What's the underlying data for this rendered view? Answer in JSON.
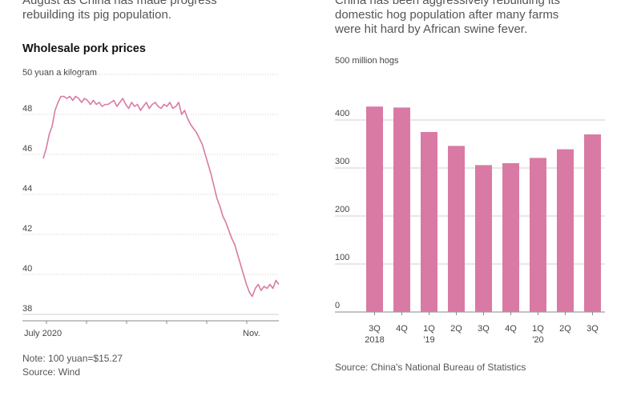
{
  "left_intro": "August as China has made progress\nrebuilding its pig population.",
  "right_intro": "China has been aggressively rebuilding its\ndomestic hog population after many farms\nwere hit hard by African swine fever.",
  "colors": {
    "line": "#d97aa4",
    "bar": "#d97aa4",
    "grid": "#cfcfcf"
  },
  "chart_data": [
    {
      "type": "line",
      "title": "Wholesale pork prices",
      "unit_label": "50 yuan a kilogram",
      "ylim": [
        38,
        50
      ],
      "y_ticks": [
        "48",
        "46",
        "44",
        "42",
        "40",
        "38"
      ],
      "x_ticks": [
        "July 2020",
        "Nov."
      ],
      "grid": true,
      "note": "Note: 100 yuan=$15.27",
      "source": "Source: Wind",
      "series": [
        {
          "values": [
            45.8,
            46.3,
            47.0,
            47.4,
            48.2,
            48.6,
            48.9,
            48.9,
            48.8,
            48.9,
            48.7,
            48.9,
            48.8,
            48.6,
            48.8,
            48.7,
            48.5,
            48.7,
            48.5,
            48.6,
            48.4,
            48.5,
            48.5,
            48.6,
            48.7,
            48.4,
            48.6,
            48.8,
            48.5,
            48.3,
            48.6,
            48.4,
            48.5,
            48.2,
            48.4,
            48.6,
            48.3,
            48.5,
            48.6,
            48.4,
            48.3,
            48.5,
            48.4,
            48.6,
            48.3,
            48.4,
            48.6,
            48.0,
            48.2,
            47.8,
            47.5,
            47.3,
            47.1,
            46.8,
            46.5,
            46.0,
            45.5,
            45.0,
            44.4,
            43.8,
            43.4,
            42.9,
            42.6,
            42.2,
            41.8,
            41.5,
            41.0,
            40.5,
            40.0,
            39.5,
            39.1,
            38.9,
            39.3,
            39.5,
            39.2,
            39.4,
            39.3,
            39.5,
            39.3,
            39.7,
            39.5
          ]
        }
      ]
    },
    {
      "type": "bar",
      "unit_label": "500 million hogs",
      "ylim": [
        0,
        500
      ],
      "y_ticks": [
        "400",
        "300",
        "200",
        "100",
        "0"
      ],
      "categories": [
        [
          "3Q",
          "2018"
        ],
        [
          "4Q",
          ""
        ],
        [
          "1Q",
          "'19"
        ],
        [
          "2Q",
          ""
        ],
        [
          "3Q",
          ""
        ],
        [
          "4Q",
          ""
        ],
        [
          "1Q",
          "'20"
        ],
        [
          "2Q",
          ""
        ],
        [
          "3Q",
          ""
        ]
      ],
      "values": [
        428,
        426,
        375,
        346,
        306,
        310,
        321,
        339,
        370
      ],
      "grid": true,
      "source": "Source: China's National Bureau of Statistics"
    }
  ]
}
